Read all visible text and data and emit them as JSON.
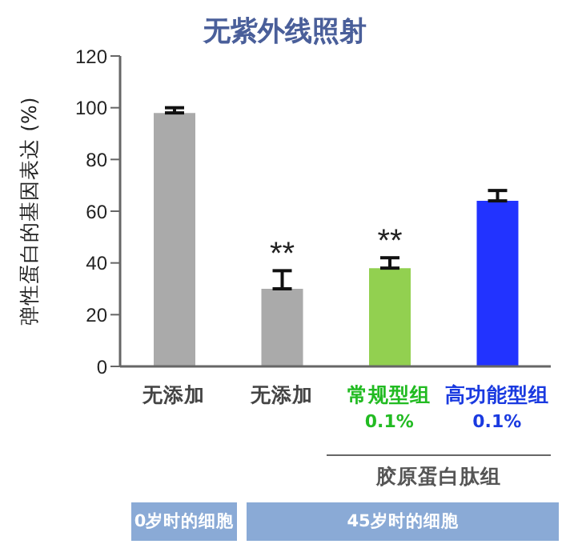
{
  "chart_data": {
    "type": "bar",
    "title": "无紫外线照射",
    "ylabel": "弹性蛋白的基因表达 (%)",
    "categories": [
      "无添加",
      "无添加",
      "常规型组\n0.1%",
      "高功能型组\n0.1%"
    ],
    "values": [
      98,
      30,
      38,
      64
    ],
    "errors": [
      2,
      7,
      4,
      4
    ],
    "colors": [
      "#aaaaaa",
      "#aaaaaa",
      "#92d050",
      "#2233ff"
    ],
    "ylim": [
      0,
      120
    ],
    "yticks": [
      0,
      20,
      40,
      60,
      80,
      100,
      120
    ],
    "grid": false,
    "annotations": [
      "**",
      "**",
      "胶原蛋白肽组",
      "0岁时的细胞",
      "45岁时的细胞"
    ]
  }
}
